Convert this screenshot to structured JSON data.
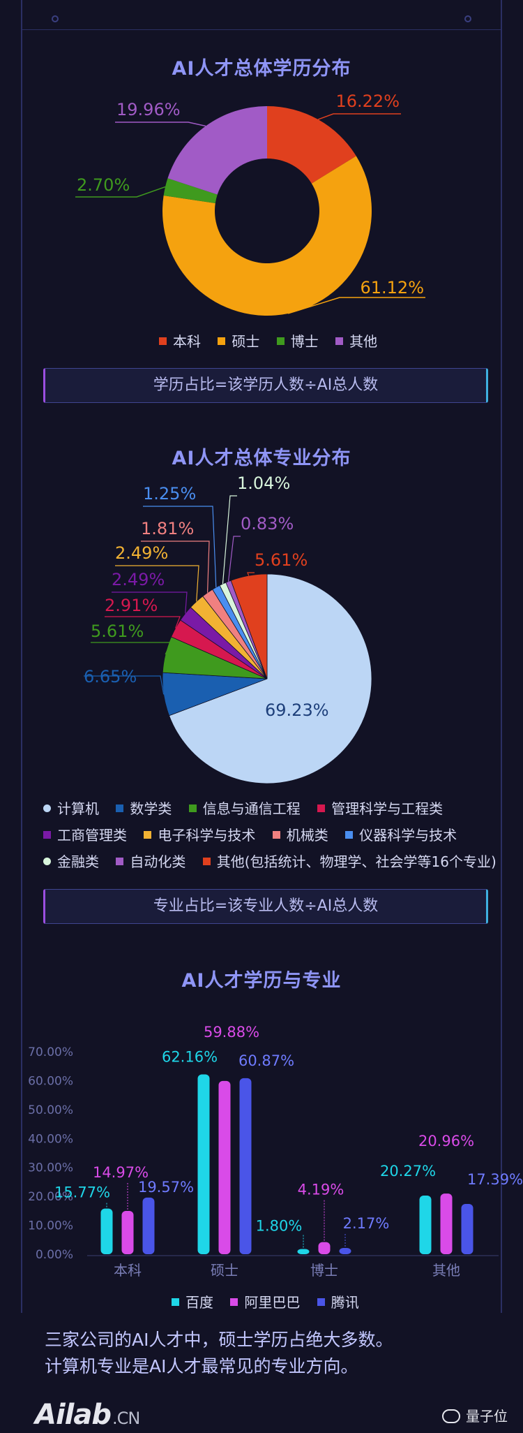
{
  "charts": {
    "degree": {
      "title": "AI人才总体学历分布",
      "legend": [
        {
          "label": "本科",
          "color": "#e0401e"
        },
        {
          "label": "硕士",
          "color": "#f5a20f"
        },
        {
          "label": "博士",
          "color": "#3f9a1e"
        },
        {
          "label": "其他",
          "color": "#a15bc6"
        }
      ],
      "formula": "学历占比=该学历人数÷AI总人数"
    },
    "major": {
      "title": "AI人才总体专业分布",
      "legend_rows": [
        [
          {
            "label": "计算机",
            "color": "#bcd6f5"
          },
          {
            "label": "数学类",
            "color": "#1a5fb0"
          },
          {
            "label": "信息与通信工程",
            "color": "#3f9a1e"
          },
          {
            "label": "管理科学与工程类",
            "color": "#d6184f"
          }
        ],
        [
          {
            "label": "工商管理类",
            "color": "#7a1aa6"
          },
          {
            "label": "电子科学与技术",
            "color": "#f2b233"
          },
          {
            "label": "机械类",
            "color": "#f08080"
          },
          {
            "label": "仪器科学与技术",
            "color": "#4a8ef0"
          }
        ],
        [
          {
            "label": "金融类",
            "color": "#d8f5dc"
          },
          {
            "label": "自动化类",
            "color": "#a15bc6"
          },
          {
            "label": "其他(包括统计、物理学、社会学等16个专业)",
            "color": "#e0401e"
          }
        ]
      ],
      "formula": "专业占比=该专业人数÷AI总人数"
    },
    "company": {
      "title": "AI人才学历与专业",
      "legend": [
        {
          "label": "百度",
          "color": "#1fd6e8"
        },
        {
          "label": "阿里巴巴",
          "color": "#d94be8"
        },
        {
          "label": "腾讯",
          "color": "#4a55e8"
        }
      ]
    }
  },
  "chart_data": [
    {
      "type": "pie",
      "subtype": "donut",
      "title": "AI人才总体学历分布",
      "labels": [
        "本科",
        "硕士",
        "博士",
        "其他"
      ],
      "values": [
        16.22,
        61.12,
        2.7,
        19.96
      ],
      "value_labels": [
        "16.22%",
        "61.12%",
        "2.70%",
        "19.96%"
      ],
      "colors": [
        "#e0401e",
        "#f5a20f",
        "#3f9a1e",
        "#a15bc6"
      ],
      "legend": "bottom"
    },
    {
      "type": "pie",
      "title": "AI人才总体专业分布",
      "labels": [
        "计算机",
        "数学类",
        "信息与通信工程",
        "管理科学与工程类",
        "工商管理类",
        "电子科学与技术",
        "机械类",
        "仪器科学与技术",
        "金融类",
        "自动化类",
        "其他(包括统计、物理学、社会学等16个专业)"
      ],
      "values": [
        69.23,
        6.65,
        5.61,
        2.91,
        2.49,
        2.49,
        1.81,
        1.25,
        1.04,
        0.83,
        5.61
      ],
      "value_labels": [
        "69.23%",
        "6.65%",
        "5.61%",
        "2.91%",
        "2.49%",
        "2.49%",
        "1.81%",
        "1.25%",
        "1.04%",
        "0.83%",
        "5.61%"
      ],
      "colors": [
        "#bcd6f5",
        "#1a5fb0",
        "#3f9a1e",
        "#d6184f",
        "#7a1aa6",
        "#f2b233",
        "#f08080",
        "#4a8ef0",
        "#d8f5dc",
        "#a15bc6",
        "#e0401e"
      ],
      "legend": "bottom"
    },
    {
      "type": "bar",
      "title": "AI人才学历与专业",
      "categories": [
        "本科",
        "硕士",
        "博士",
        "其他"
      ],
      "series": [
        {
          "name": "百度",
          "values": [
            15.77,
            62.16,
            1.8,
            20.27
          ],
          "labels": [
            "15.77%",
            "62.16%",
            "1.80%",
            "20.27%"
          ],
          "color": "#1fd6e8"
        },
        {
          "name": "阿里巴巴",
          "values": [
            14.97,
            59.88,
            4.19,
            20.96
          ],
          "labels": [
            "14.97%",
            "59.88%",
            "4.19%",
            "20.96%"
          ],
          "color": "#d94be8"
        },
        {
          "name": "腾讯",
          "values": [
            19.57,
            60.87,
            2.17,
            17.39
          ],
          "labels": [
            "19.57%",
            "60.87%",
            "2.17%",
            "17.39%"
          ],
          "color": "#4a55e8"
        }
      ],
      "yticks": [
        "0.00%",
        "10.00%",
        "20.00%",
        "30.00%",
        "40.00%",
        "50.00%",
        "60.00%",
        "70.00%"
      ],
      "ylim": [
        0,
        70
      ],
      "legend": "bottom"
    }
  ],
  "conclusion": {
    "line1": "三家公司的AI人才中，硕士学历占绝大多数。",
    "line2": "计算机专业是AI人才最常见的专业方向。"
  },
  "footer": {
    "logo_main": "Ailab",
    "logo_suffix": ".CN",
    "brand": "量子位"
  }
}
